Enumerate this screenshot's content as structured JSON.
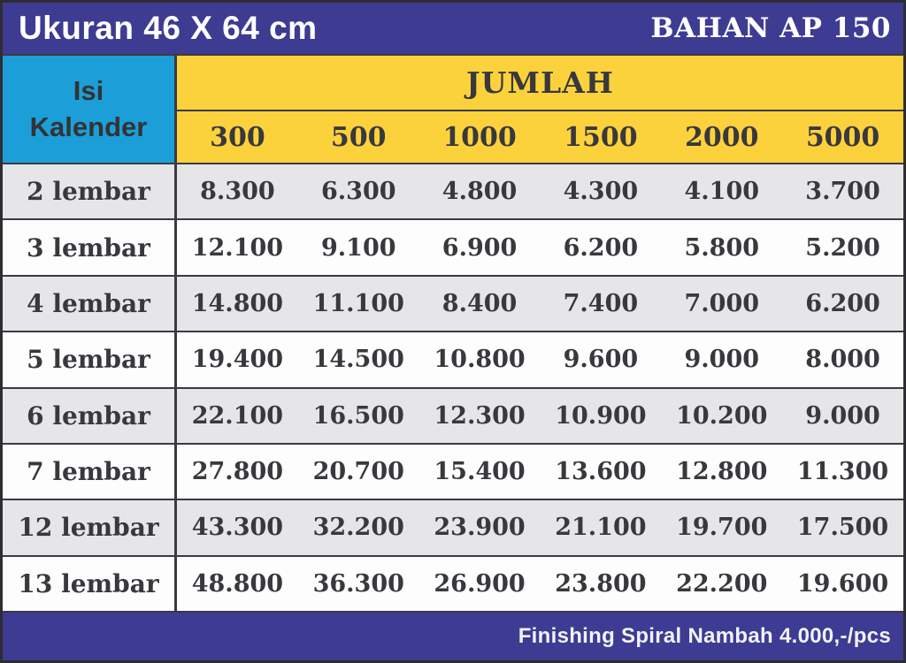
{
  "header": {
    "size_title": "Ukuran 46 X 64 cm",
    "material_title": "BAHAN AP 150"
  },
  "table": {
    "corner_label_line1": "Isi",
    "corner_label_line2": "Kalender",
    "group_header": "JUMLAH",
    "quantities": [
      "300",
      "500",
      "1000",
      "1500",
      "2000",
      "5000"
    ],
    "rows": [
      {
        "label": "2 lembar",
        "values": [
          "8.300",
          "6.300",
          "4.800",
          "4.300",
          "4.100",
          "3.700"
        ]
      },
      {
        "label": "3 lembar",
        "values": [
          "12.100",
          "9.100",
          "6.900",
          "6.200",
          "5.800",
          "5.200"
        ]
      },
      {
        "label": "4 lembar",
        "values": [
          "14.800",
          "11.100",
          "8.400",
          "7.400",
          "7.000",
          "6.200"
        ]
      },
      {
        "label": "5 lembar",
        "values": [
          "19.400",
          "14.500",
          "10.800",
          "9.600",
          "9.000",
          "8.000"
        ]
      },
      {
        "label": "6 lembar",
        "values": [
          "22.100",
          "16.500",
          "12.300",
          "10.900",
          "10.200",
          "9.000"
        ]
      },
      {
        "label": "7 lembar",
        "values": [
          "27.800",
          "20.700",
          "15.400",
          "13.600",
          "12.800",
          "11.300"
        ]
      },
      {
        "label": "12 lembar",
        "values": [
          "43.300",
          "32.200",
          "23.900",
          "21.100",
          "19.700",
          "17.500"
        ]
      },
      {
        "label": "13 lembar",
        "values": [
          "48.800",
          "36.300",
          "26.900",
          "23.800",
          "22.200",
          "19.600"
        ]
      }
    ]
  },
  "footer": {
    "note": "Finishing Spiral Nambah 4.000,-/pcs"
  },
  "colors": {
    "navy": "#3d3b92",
    "cyan": "#1c9fd8",
    "yellow": "#fcd23c",
    "row_alt_gray": "#e6e6e8",
    "row_white": "#fdfdfd",
    "text_dark": "#38383d"
  },
  "chart_data": {
    "type": "table",
    "title": "Ukuran 46 X 64 cm — BAHAN AP 150",
    "row_header": "Isi Kalender",
    "column_group": "JUMLAH",
    "columns": [
      300,
      500,
      1000,
      1500,
      2000,
      5000
    ],
    "rows": [
      "2 lembar",
      "3 lembar",
      "4 lembar",
      "5 lembar",
      "6 lembar",
      "7 lembar",
      "12 lembar",
      "13 lembar"
    ],
    "values": [
      [
        8300,
        6300,
        4800,
        4300,
        4100,
        3700
      ],
      [
        12100,
        9100,
        6900,
        6200,
        5800,
        5200
      ],
      [
        14800,
        11100,
        8400,
        7400,
        7000,
        6200
      ],
      [
        19400,
        14500,
        10800,
        9600,
        9000,
        8000
      ],
      [
        22100,
        16500,
        12300,
        10900,
        10200,
        9000
      ],
      [
        27800,
        20700,
        15400,
        13600,
        12800,
        11300
      ],
      [
        43300,
        32200,
        23900,
        21100,
        19700,
        17500
      ],
      [
        48800,
        36300,
        26900,
        23800,
        22200,
        19600
      ]
    ],
    "footnote": "Finishing Spiral Nambah 4.000,-/pcs"
  }
}
